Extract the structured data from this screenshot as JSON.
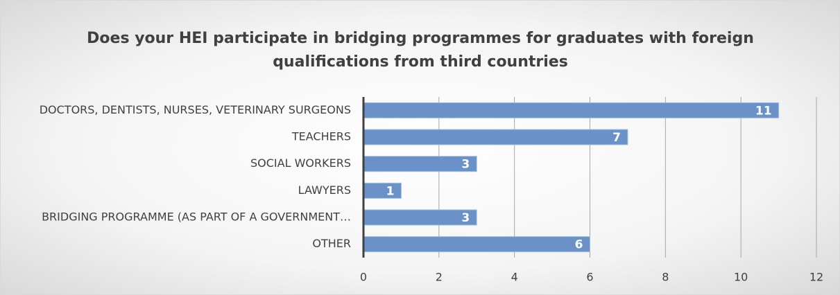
{
  "chart_data": {
    "type": "bar",
    "orientation": "horizontal",
    "title": "Does your HEI participate in bridging programmes for graduates with foreign qualifications from third countries",
    "categories": [
      "DOCTORS, DENTISTS, NURSES, VETERINARY SURGEONS",
      "TEACHERS",
      "SOCIAL WORKERS",
      "LAWYERS",
      "BRIDGING PROGRAMME (AS PART OF A GOVERNMENT…",
      "OTHER"
    ],
    "values": [
      11,
      7,
      3,
      1,
      3,
      6
    ],
    "color": "#6a92c8",
    "xlim": [
      0,
      12
    ],
    "xticks": [
      0,
      2,
      4,
      6,
      8,
      10,
      12
    ],
    "grid": true
  }
}
